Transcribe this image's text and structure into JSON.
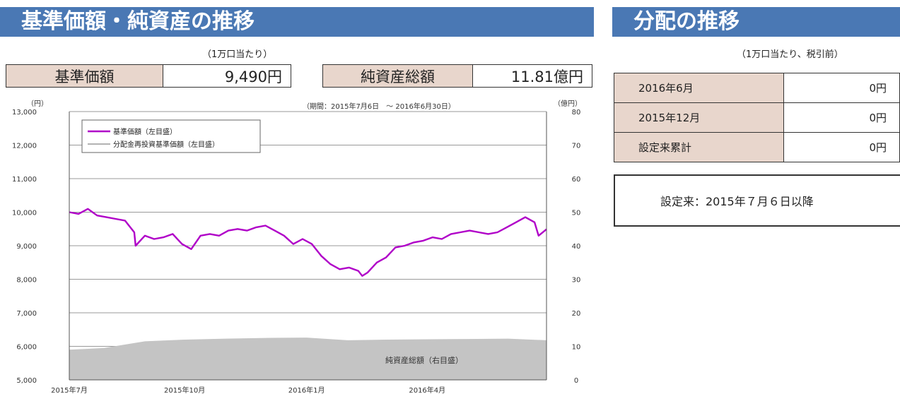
{
  "left_header": {
    "title": "基準価額・純資産の推移"
  },
  "right_header": {
    "title": "分配の推移"
  },
  "nav_note": "（1万口当たり）",
  "nav_box": {
    "label": "基準価額",
    "value": "9,490円"
  },
  "total_box": {
    "label": "純資産総額",
    "value": "11.81億円"
  },
  "dist_note": "（1万口当たり、税引前）",
  "distributions": [
    {
      "label": "2016年6月",
      "value": "0円"
    },
    {
      "label": "2015年12月",
      "value": "0円"
    },
    {
      "label": "設定来累計",
      "value": "0円"
    }
  ],
  "since_note": "設定来：2015年７月６日以降",
  "chart_data": {
    "type": "line",
    "period_label": "（期間：2015年7月6日　～ 2016年6月30日）",
    "y_left": {
      "unit_label": "（円）",
      "range": [
        5000,
        13000
      ],
      "ticks": [
        "5,000",
        "6,000",
        "7,000",
        "8,000",
        "9,000",
        "10,000",
        "11,000",
        "12,000",
        "13,000"
      ]
    },
    "y_right": {
      "unit_label": "（億円）",
      "range": [
        0,
        80
      ],
      "ticks": [
        "0",
        "10",
        "20",
        "30",
        "40",
        "50",
        "60",
        "70",
        "80"
      ]
    },
    "x_ticks": [
      "2015年7月",
      "2015年10月",
      "2016年1月",
      "2016年4月"
    ],
    "x_tick_dates": [
      "2015-07-06",
      "2015-10-01",
      "2016-01-01",
      "2016-04-01"
    ],
    "x_range": [
      "2015-07-06",
      "2016-06-30"
    ],
    "grid": true,
    "legend_position": "top-left",
    "series": [
      {
        "name": "基準価額（左目盛）",
        "axis": "left",
        "style": "line",
        "color": "#b000c8",
        "x": [
          "2015-07-06",
          "2015-07-13",
          "2015-07-20",
          "2015-07-27",
          "2015-08-03",
          "2015-08-10",
          "2015-08-17",
          "2015-08-24",
          "2015-08-25",
          "2015-09-01",
          "2015-09-08",
          "2015-09-15",
          "2015-09-22",
          "2015-09-29",
          "2015-10-06",
          "2015-10-13",
          "2015-10-20",
          "2015-10-27",
          "2015-11-03",
          "2015-11-10",
          "2015-11-17",
          "2015-11-24",
          "2015-12-01",
          "2015-12-08",
          "2015-12-15",
          "2015-12-22",
          "2015-12-29",
          "2016-01-05",
          "2016-01-12",
          "2016-01-19",
          "2016-01-26",
          "2016-02-02",
          "2016-02-09",
          "2016-02-12",
          "2016-02-16",
          "2016-02-23",
          "2016-03-01",
          "2016-03-08",
          "2016-03-15",
          "2016-03-22",
          "2016-03-29",
          "2016-04-05",
          "2016-04-12",
          "2016-04-19",
          "2016-04-26",
          "2016-05-03",
          "2016-05-10",
          "2016-05-17",
          "2016-05-24",
          "2016-05-31",
          "2016-06-07",
          "2016-06-14",
          "2016-06-21",
          "2016-06-24",
          "2016-06-30"
        ],
        "values": [
          10000,
          9950,
          10100,
          9900,
          9850,
          9800,
          9750,
          9400,
          9000,
          9300,
          9200,
          9250,
          9350,
          9050,
          8900,
          9300,
          9350,
          9300,
          9450,
          9500,
          9450,
          9550,
          9600,
          9450,
          9300,
          9050,
          9200,
          9050,
          8700,
          8450,
          8300,
          8350,
          8250,
          8100,
          8200,
          8500,
          8650,
          8950,
          9000,
          9100,
          9150,
          9250,
          9200,
          9350,
          9400,
          9450,
          9400,
          9350,
          9400,
          9550,
          9700,
          9850,
          9700,
          9300,
          9490
        ]
      },
      {
        "name": "分配金再投資基準価額（左目盛）",
        "axis": "left",
        "style": "line",
        "color": "#999999",
        "x": [
          "2015-07-06",
          "2016-06-30"
        ],
        "values": [
          10000,
          9490
        ]
      },
      {
        "name": "純資産総額（右目盛）",
        "axis": "right",
        "style": "area",
        "color": "#c4c4c4",
        "x": [
          "2015-07-06",
          "2015-08-01",
          "2015-09-01",
          "2015-10-01",
          "2015-11-01",
          "2015-12-01",
          "2016-01-01",
          "2016-02-01",
          "2016-03-01",
          "2016-04-01",
          "2016-05-01",
          "2016-06-01",
          "2016-06-30"
        ],
        "values": [
          9.0,
          9.5,
          11.5,
          12.0,
          12.3,
          12.5,
          12.6,
          11.8,
          12.0,
          12.1,
          12.2,
          12.3,
          11.81
        ]
      }
    ]
  }
}
